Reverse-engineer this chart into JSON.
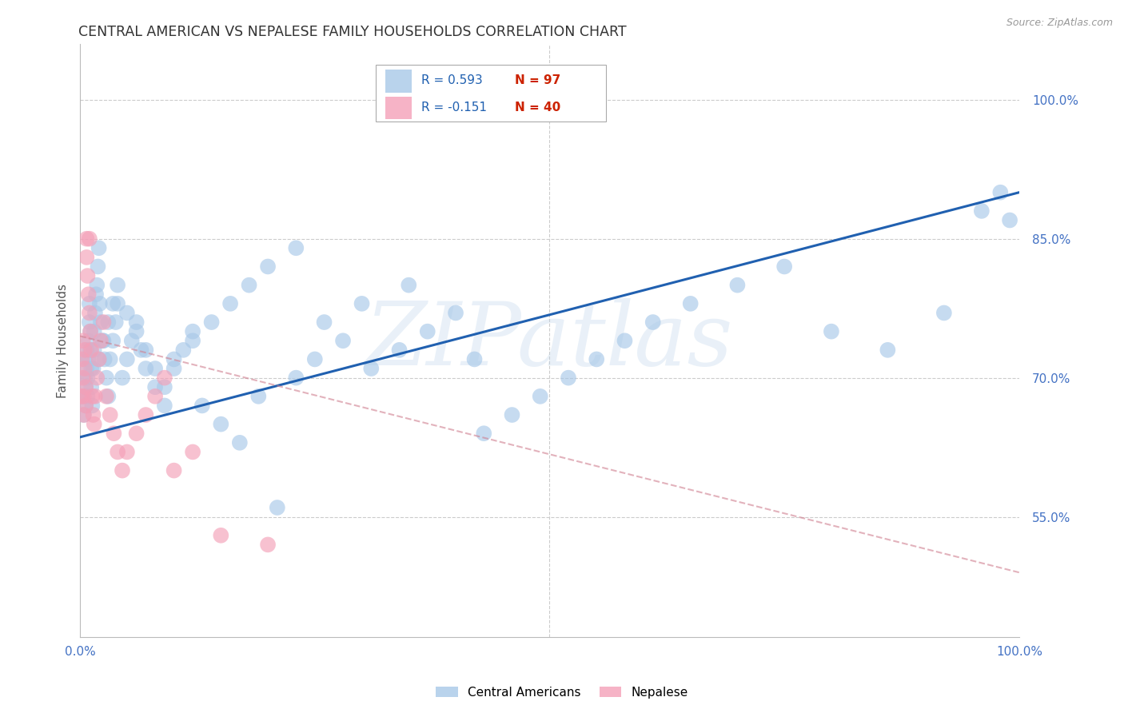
{
  "title": "CENTRAL AMERICAN VS NEPALESE FAMILY HOUSEHOLDS CORRELATION CHART",
  "source": "Source: ZipAtlas.com",
  "ylabel": "Family Households",
  "right_yticks": [
    "100.0%",
    "85.0%",
    "70.0%",
    "55.0%"
  ],
  "right_ytick_values": [
    1.0,
    0.85,
    0.7,
    0.55
  ],
  "watermark": "ZIPatlas",
  "blue_color": "#a8c8e8",
  "pink_color": "#f4a0b8",
  "blue_line_color": "#2060b0",
  "pink_line_color": "#d08090",
  "grid_color": "#cccccc",
  "right_tick_color": "#4472c4",
  "xlim": [
    0.0,
    1.0
  ],
  "ylim": [
    0.42,
    1.06
  ],
  "ca_x": [
    0.003,
    0.004,
    0.005,
    0.005,
    0.006,
    0.006,
    0.007,
    0.007,
    0.008,
    0.008,
    0.009,
    0.009,
    0.01,
    0.01,
    0.011,
    0.011,
    0.012,
    0.012,
    0.013,
    0.014,
    0.015,
    0.015,
    0.016,
    0.017,
    0.018,
    0.019,
    0.02,
    0.021,
    0.022,
    0.024,
    0.026,
    0.028,
    0.03,
    0.032,
    0.035,
    0.038,
    0.04,
    0.045,
    0.05,
    0.055,
    0.06,
    0.065,
    0.07,
    0.08,
    0.09,
    0.1,
    0.11,
    0.12,
    0.13,
    0.15,
    0.17,
    0.19,
    0.21,
    0.23,
    0.25,
    0.28,
    0.31,
    0.34,
    0.37,
    0.4,
    0.43,
    0.46,
    0.49,
    0.52,
    0.55,
    0.58,
    0.61,
    0.65,
    0.7,
    0.75,
    0.8,
    0.86,
    0.92,
    0.96,
    0.98,
    0.99,
    0.02,
    0.025,
    0.03,
    0.035,
    0.04,
    0.05,
    0.06,
    0.07,
    0.08,
    0.09,
    0.1,
    0.12,
    0.14,
    0.16,
    0.18,
    0.2,
    0.23,
    0.26,
    0.3,
    0.35,
    0.42
  ],
  "ca_y": [
    0.68,
    0.66,
    0.7,
    0.72,
    0.69,
    0.67,
    0.71,
    0.73,
    0.68,
    0.7,
    0.72,
    0.74,
    0.76,
    0.78,
    0.75,
    0.73,
    0.71,
    0.69,
    0.67,
    0.71,
    0.73,
    0.75,
    0.77,
    0.79,
    0.8,
    0.82,
    0.84,
    0.78,
    0.76,
    0.74,
    0.72,
    0.7,
    0.68,
    0.72,
    0.74,
    0.76,
    0.78,
    0.7,
    0.72,
    0.74,
    0.76,
    0.73,
    0.71,
    0.69,
    0.67,
    0.71,
    0.73,
    0.75,
    0.67,
    0.65,
    0.63,
    0.68,
    0.56,
    0.7,
    0.72,
    0.74,
    0.71,
    0.73,
    0.75,
    0.77,
    0.64,
    0.66,
    0.68,
    0.7,
    0.72,
    0.74,
    0.76,
    0.78,
    0.8,
    0.82,
    0.75,
    0.73,
    0.77,
    0.88,
    0.9,
    0.87,
    0.72,
    0.74,
    0.76,
    0.78,
    0.8,
    0.77,
    0.75,
    0.73,
    0.71,
    0.69,
    0.72,
    0.74,
    0.76,
    0.78,
    0.8,
    0.82,
    0.84,
    0.76,
    0.78,
    0.8,
    0.72
  ],
  "nep_x": [
    0.001,
    0.002,
    0.003,
    0.003,
    0.004,
    0.004,
    0.005,
    0.005,
    0.006,
    0.006,
    0.007,
    0.007,
    0.008,
    0.009,
    0.01,
    0.01,
    0.011,
    0.012,
    0.013,
    0.014,
    0.015,
    0.016,
    0.018,
    0.02,
    0.022,
    0.025,
    0.028,
    0.032,
    0.036,
    0.04,
    0.045,
    0.05,
    0.06,
    0.07,
    0.08,
    0.09,
    0.1,
    0.12,
    0.15,
    0.2
  ],
  "nep_y": [
    0.68,
    0.72,
    0.74,
    0.7,
    0.68,
    0.66,
    0.71,
    0.73,
    0.69,
    0.67,
    0.85,
    0.83,
    0.81,
    0.79,
    0.77,
    0.85,
    0.75,
    0.73,
    0.68,
    0.66,
    0.65,
    0.68,
    0.7,
    0.72,
    0.74,
    0.76,
    0.68,
    0.66,
    0.64,
    0.62,
    0.6,
    0.62,
    0.64,
    0.66,
    0.68,
    0.7,
    0.6,
    0.62,
    0.53,
    0.52
  ],
  "ca_line_x": [
    0.0,
    1.0
  ],
  "ca_line_y": [
    0.636,
    0.9
  ],
  "nep_line_x": [
    0.0,
    1.0
  ],
  "nep_line_y": [
    0.745,
    0.49
  ]
}
